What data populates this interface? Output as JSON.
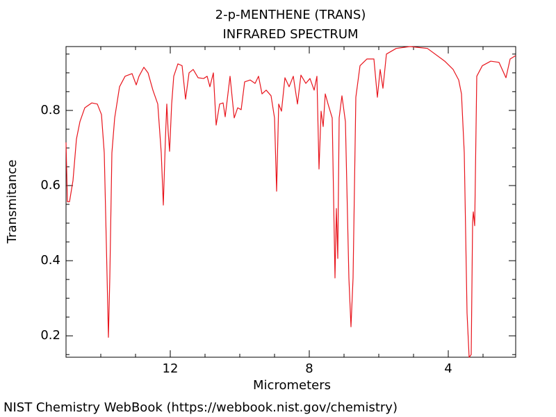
{
  "chart_data": {
    "type": "line",
    "title": "2-p-MENTHENE (TRANS)",
    "subtitle": "INFRARED SPECTRUM",
    "x_label": "Micrometers",
    "y_label": "Transmitance",
    "source": "NIST Chemistry WebBook (https://webbook.nist.gov/chemistry)",
    "color": "#e8141c",
    "x": [
      15,
      14.96,
      14.9,
      14.8,
      14.7,
      14.6,
      14.46,
      14.26,
      14.1,
      13.98,
      13.9,
      13.84,
      13.78,
      13.74,
      13.68,
      13.6,
      13.46,
      13.3,
      13.1,
      12.98,
      12.9,
      12.76,
      12.64,
      12.5,
      12.36,
      12.26,
      12.2,
      12.14,
      12.1,
      12.06,
      12.02,
      11.96,
      11.9,
      11.78,
      11.66,
      11.56,
      11.46,
      11.34,
      11.2,
      11.04,
      10.94,
      10.86,
      10.76,
      10.68,
      10.58,
      10.48,
      10.42,
      10.28,
      10.16,
      10.06,
      9.96,
      9.86,
      9.7,
      9.56,
      9.46,
      9.36,
      9.24,
      9.1,
      9.0,
      8.94,
      8.88,
      8.8,
      8.7,
      8.58,
      8.46,
      8.34,
      8.24,
      8.1,
      7.98,
      7.86,
      7.78,
      7.72,
      7.66,
      7.6,
      7.54,
      7.46,
      7.34,
      7.26,
      7.22,
      7.18,
      7.14,
      7.06,
      6.96,
      6.86,
      6.8,
      6.74,
      6.66,
      6.54,
      6.34,
      6.14,
      6.04,
      5.96,
      5.88,
      5.78,
      5.5,
      5.1,
      4.6,
      4.1,
      3.86,
      3.7,
      3.62,
      3.54,
      3.46,
      3.4,
      3.34,
      3.3,
      3.28,
      3.24,
      3.18,
      3.02,
      2.78,
      2.54,
      2.34,
      2.22,
      2.06
    ],
    "values": [
      0.715,
      0.557,
      0.557,
      0.613,
      0.724,
      0.77,
      0.807,
      0.82,
      0.817,
      0.789,
      0.687,
      0.446,
      0.196,
      0.354,
      0.687,
      0.78,
      0.863,
      0.891,
      0.898,
      0.868,
      0.891,
      0.915,
      0.9,
      0.854,
      0.817,
      0.687,
      0.548,
      0.724,
      0.817,
      0.743,
      0.691,
      0.817,
      0.891,
      0.924,
      0.919,
      0.83,
      0.9,
      0.909,
      0.887,
      0.885,
      0.891,
      0.863,
      0.9,
      0.761,
      0.817,
      0.82,
      0.783,
      0.891,
      0.78,
      0.807,
      0.802,
      0.876,
      0.881,
      0.872,
      0.891,
      0.844,
      0.854,
      0.839,
      0.78,
      0.585,
      0.817,
      0.798,
      0.887,
      0.863,
      0.891,
      0.817,
      0.894,
      0.872,
      0.885,
      0.854,
      0.891,
      0.644,
      0.798,
      0.757,
      0.844,
      0.817,
      0.78,
      0.354,
      0.539,
      0.406,
      0.78,
      0.839,
      0.77,
      0.354,
      0.224,
      0.354,
      0.835,
      0.919,
      0.937,
      0.937,
      0.835,
      0.909,
      0.859,
      0.95,
      0.965,
      0.97,
      0.965,
      0.931,
      0.909,
      0.881,
      0.844,
      0.687,
      0.261,
      0.143,
      0.15,
      0.502,
      0.53,
      0.493,
      0.891,
      0.919,
      0.931,
      0.928,
      0.887,
      0.937,
      0.946
    ],
    "xlim": [
      15,
      2.06
    ],
    "ylim": [
      0.143,
      0.97
    ],
    "xticks": [
      12,
      8,
      4
    ],
    "yticks": [
      0.2,
      0.4,
      0.6,
      0.8
    ],
    "xminorticks": [
      14,
      13,
      11,
      10,
      9,
      7,
      6,
      5,
      3
    ],
    "yminorticks": [
      0.15,
      0.25,
      0.3,
      0.35,
      0.45,
      0.5,
      0.55,
      0.65,
      0.7,
      0.75,
      0.85,
      0.9,
      0.95
    ]
  }
}
